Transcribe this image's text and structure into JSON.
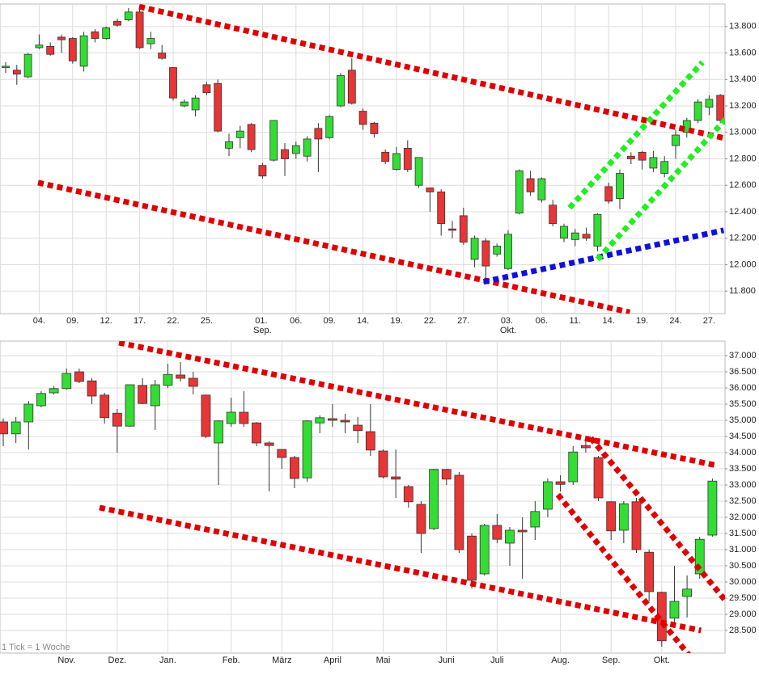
{
  "chart_data": [
    {
      "type": "candlestick",
      "categories": [
        null,
        null,
        null,
        "04.",
        null,
        null,
        "09.",
        null,
        null,
        "12.",
        null,
        null,
        "17.",
        null,
        null,
        "22.",
        null,
        null,
        "25.",
        null,
        null,
        null,
        null,
        "01. Sep.",
        null,
        null,
        "06.",
        null,
        null,
        "09.",
        null,
        null,
        "14.",
        null,
        null,
        "19.",
        null,
        null,
        "22.",
        null,
        null,
        "27.",
        null,
        null,
        null,
        "03. Okt.",
        null,
        null,
        "06.",
        null,
        null,
        "11.",
        null,
        null,
        "14.",
        null,
        null,
        "19.",
        null,
        null,
        "24.",
        null,
        null,
        "27.",
        null
      ],
      "open": [
        13.49,
        13.47,
        13.42,
        13.64,
        13.65,
        13.72,
        13.71,
        13.5,
        13.76,
        13.71,
        13.84,
        13.85,
        13.91,
        13.67,
        13.6,
        13.49,
        13.2,
        13.17,
        13.36,
        13.37,
        12.88,
        12.96,
        13.06,
        12.75,
        12.79,
        12.87,
        12.84,
        12.82,
        13.03,
        12.96,
        13.2,
        13.47,
        13.16,
        13.07,
        12.85,
        12.72,
        12.88,
        12.6,
        12.58,
        12.55,
        12.27,
        12.37,
        12.04,
        12.18,
        12.08,
        11.97,
        12.39,
        12.65,
        12.49,
        12.45,
        12.2,
        12.19,
        12.23,
        12.14,
        12.59,
        12.5,
        12.82,
        12.85,
        12.73,
        12.69,
        12.9,
        13.0,
        13.09,
        13.19,
        13.28
      ],
      "high": [
        13.53,
        13.51,
        13.6,
        13.74,
        13.68,
        13.74,
        13.72,
        13.76,
        13.78,
        13.8,
        13.86,
        13.94,
        13.96,
        13.76,
        13.66,
        13.49,
        13.25,
        13.28,
        13.38,
        13.4,
        12.99,
        13.05,
        13.07,
        12.77,
        13.09,
        12.92,
        12.93,
        12.97,
        13.07,
        13.13,
        13.45,
        13.56,
        13.18,
        13.08,
        12.87,
        12.89,
        12.94,
        12.81,
        12.58,
        12.57,
        12.33,
        12.43,
        12.22,
        12.2,
        12.16,
        12.26,
        12.72,
        12.71,
        12.66,
        12.49,
        12.31,
        12.27,
        12.28,
        12.39,
        12.62,
        12.72,
        12.85,
        12.86,
        12.86,
        12.82,
        13.02,
        13.11,
        13.25,
        13.28,
        13.29
      ],
      "low": [
        13.45,
        13.36,
        13.41,
        13.63,
        13.58,
        13.6,
        13.52,
        13.46,
        13.68,
        13.7,
        13.8,
        13.84,
        13.63,
        13.63,
        13.55,
        13.24,
        13.19,
        13.12,
        13.28,
        13.0,
        12.82,
        12.88,
        12.85,
        12.65,
        12.78,
        12.67,
        12.8,
        12.78,
        12.7,
        12.95,
        13.19,
        13.21,
        13.02,
        12.96,
        12.76,
        12.71,
        12.7,
        12.58,
        12.4,
        12.22,
        12.2,
        12.15,
        11.98,
        11.87,
        12.06,
        11.96,
        12.38,
        12.52,
        12.47,
        12.29,
        12.17,
        12.14,
        12.18,
        12.1,
        12.46,
        12.42,
        12.76,
        12.72,
        12.7,
        12.66,
        12.8,
        12.96,
        13.07,
        13.13,
        13.07
      ],
      "close": [
        13.5,
        13.44,
        13.59,
        13.66,
        13.59,
        13.7,
        13.54,
        13.73,
        13.71,
        13.79,
        13.81,
        13.91,
        13.64,
        13.71,
        13.56,
        13.26,
        13.23,
        13.26,
        13.3,
        13.01,
        12.93,
        13.01,
        12.87,
        12.67,
        13.09,
        12.8,
        12.9,
        12.95,
        12.95,
        13.12,
        13.43,
        13.22,
        13.06,
        12.99,
        12.78,
        12.84,
        12.72,
        12.81,
        12.55,
        12.31,
        12.26,
        12.17,
        12.2,
        11.99,
        12.14,
        12.23,
        12.71,
        12.55,
        12.65,
        12.31,
        12.29,
        12.24,
        12.2,
        12.38,
        12.48,
        12.69,
        12.8,
        12.79,
        12.81,
        12.78,
        12.98,
        13.09,
        13.23,
        13.25,
        13.09
      ],
      "up_color": "#33dd33",
      "down_color": "#e83535",
      "ylim": [
        11.63,
        13.97
      ],
      "yticks": [
        {
          "value": 11.8,
          "label": "11.800"
        },
        {
          "value": 12.0,
          "label": "12.000"
        },
        {
          "value": 12.2,
          "label": "12.200"
        },
        {
          "value": 12.4,
          "label": "12.400"
        },
        {
          "value": 12.6,
          "label": "12.600"
        },
        {
          "value": 12.8,
          "label": "12.800"
        },
        {
          "value": 13.0,
          "label": "13.000"
        },
        {
          "value": 13.2,
          "label": "13.200"
        },
        {
          "value": 13.4,
          "label": "13.400"
        },
        {
          "value": 13.6,
          "label": "13.600"
        },
        {
          "value": 13.8,
          "label": "13.800"
        }
      ],
      "grid": true,
      "trendlines": [
        {
          "color": "#e00000",
          "start": {
            "x": 11.96,
            "y": 13.95
          },
          "end": {
            "x": 64.7,
            "y": 12.95
          }
        },
        {
          "color": "#e00000",
          "start": {
            "x": 2.9,
            "y": 12.62
          },
          "end": {
            "x": 55.9,
            "y": 11.64
          }
        },
        {
          "color": "#1010dd",
          "start": {
            "x": 42.8,
            "y": 11.87
          },
          "end": {
            "x": 64.3,
            "y": 12.26
          }
        },
        {
          "color": "#22ee22",
          "start": {
            "x": 50.5,
            "y": 12.43
          },
          "end": {
            "x": 62.4,
            "y": 13.53
          }
        },
        {
          "color": "#22ee22",
          "start": {
            "x": 53.0,
            "y": 12.04
          },
          "end": {
            "x": 64.7,
            "y": 13.12
          }
        }
      ]
    },
    {
      "type": "candlestick",
      "categories": [
        null,
        null,
        null,
        null,
        null,
        "Nov.",
        null,
        null,
        null,
        "Dez.",
        null,
        null,
        null,
        "Jan.",
        null,
        null,
        null,
        null,
        "Feb.",
        null,
        null,
        null,
        "März",
        null,
        null,
        null,
        "April",
        null,
        null,
        null,
        "Mai",
        null,
        null,
        null,
        null,
        "Juni",
        null,
        null,
        null,
        "Juli",
        null,
        null,
        null,
        null,
        "Aug.",
        null,
        null,
        null,
        "Sep.",
        null,
        null,
        null,
        "Okt.",
        null,
        null,
        null,
        null
      ],
      "open": [
        34.95,
        34.58,
        34.95,
        35.45,
        35.85,
        35.98,
        36.5,
        36.22,
        35.78,
        35.22,
        34.82,
        36.08,
        35.45,
        36.08,
        36.4,
        36.3,
        35.78,
        34.3,
        34.9,
        35.25,
        34.92,
        34.3,
        34.1,
        33.85,
        33.22,
        34.92,
        35.05,
        35.0,
        34.85,
        34.65,
        34.05,
        33.25,
        32.95,
        32.4,
        31.65,
        33.48,
        33.3,
        31.42,
        30.25,
        31.75,
        31.2,
        31.6,
        31.7,
        32.25,
        33.1,
        33.1,
        34.22,
        33.85,
        32.48,
        31.6,
        32.48,
        30.92,
        29.68,
        28.88,
        29.55,
        30.25,
        31.45
      ],
      "high": [
        35.05,
        35.1,
        35.6,
        35.9,
        36.05,
        36.6,
        36.6,
        36.3,
        35.85,
        35.35,
        36.1,
        36.3,
        36.25,
        36.75,
        36.8,
        36.5,
        35.8,
        35.0,
        35.7,
        35.9,
        34.95,
        34.35,
        34.1,
        33.9,
        35.0,
        35.15,
        35.5,
        35.2,
        35.1,
        35.5,
        34.1,
        34.1,
        33.0,
        32.5,
        33.5,
        33.5,
        33.4,
        31.5,
        31.8,
        32.1,
        31.7,
        32.0,
        32.5,
        33.2,
        33.3,
        34.2,
        34.5,
        33.9,
        32.5,
        32.5,
        32.6,
        31.0,
        29.7,
        30.5,
        30.2,
        31.4,
        33.2
      ],
      "low": [
        34.2,
        34.3,
        34.1,
        35.4,
        35.8,
        35.95,
        36.15,
        35.5,
        34.9,
        34.0,
        34.8,
        35.5,
        34.7,
        36.0,
        36.2,
        35.8,
        34.45,
        33.0,
        34.8,
        34.8,
        34.2,
        32.8,
        33.5,
        32.9,
        33.1,
        34.6,
        34.8,
        34.6,
        34.3,
        33.9,
        33.2,
        32.6,
        32.3,
        30.9,
        31.6,
        33.0,
        30.9,
        29.8,
        30.2,
        31.2,
        30.5,
        30.1,
        31.3,
        32.0,
        32.8,
        33.0,
        34.0,
        32.5,
        31.3,
        31.2,
        30.9,
        29.4,
        28.0,
        28.7,
        28.9,
        30.1,
        31.4
      ],
      "close": [
        34.58,
        34.95,
        35.5,
        35.83,
        35.98,
        36.45,
        36.2,
        35.75,
        35.08,
        34.82,
        36.1,
        35.52,
        36.1,
        36.42,
        36.3,
        36.05,
        34.5,
        34.98,
        35.25,
        34.9,
        34.3,
        34.22,
        33.85,
        33.2,
        34.98,
        35.08,
        35.0,
        34.95,
        34.68,
        34.08,
        33.25,
        33.18,
        32.48,
        31.5,
        33.48,
        33.18,
        31.0,
        30.05,
        31.75,
        31.32,
        31.6,
        31.55,
        32.18,
        33.1,
        33.02,
        34.02,
        34.15,
        32.6,
        31.58,
        32.42,
        31.0,
        29.7,
        28.18,
        29.4,
        29.78,
        31.32,
        33.12
      ],
      "up_color": "#33dd33",
      "down_color": "#e83535",
      "ylim": [
        27.8,
        37.45
      ],
      "yticks": [
        {
          "value": 28.5,
          "label": "28.500"
        },
        {
          "value": 29.0,
          "label": "29.000"
        },
        {
          "value": 29.5,
          "label": "29.500"
        },
        {
          "value": 30.0,
          "label": "30.000"
        },
        {
          "value": 30.5,
          "label": "30.500"
        },
        {
          "value": 31.0,
          "label": "31.000"
        },
        {
          "value": 31.5,
          "label": "31.500"
        },
        {
          "value": 32.0,
          "label": "32.000"
        },
        {
          "value": 32.5,
          "label": "32.500"
        },
        {
          "value": 33.0,
          "label": "33.000"
        },
        {
          "value": 33.5,
          "label": "33.500"
        },
        {
          "value": 34.0,
          "label": "34.000"
        },
        {
          "value": 34.5,
          "label": "34.500"
        },
        {
          "value": 35.0,
          "label": "35.000"
        },
        {
          "value": 35.5,
          "label": "35.500"
        },
        {
          "value": 36.0,
          "label": "36.000"
        },
        {
          "value": 36.5,
          "label": "36.500"
        },
        {
          "value": 37.0,
          "label": "37.000"
        }
      ],
      "grid": true,
      "annotation": "1 Tick = 1 Woche",
      "trendlines": [
        {
          "color": "#e00000",
          "start": {
            "x": 9.14,
            "y": 37.4
          },
          "end": {
            "x": 56.4,
            "y": 33.6
          }
        },
        {
          "color": "#e00000",
          "start": {
            "x": 7.6,
            "y": 32.3
          },
          "end": {
            "x": 55.1,
            "y": 28.5
          }
        },
        {
          "color": "#e00000",
          "start": {
            "x": 46.4,
            "y": 34.45
          },
          "end": {
            "x": 57.3,
            "y": 29.3
          }
        },
        {
          "color": "#e00000",
          "start": {
            "x": 43.8,
            "y": 32.7
          },
          "end": {
            "x": 54.4,
            "y": 27.62
          }
        }
      ]
    }
  ]
}
